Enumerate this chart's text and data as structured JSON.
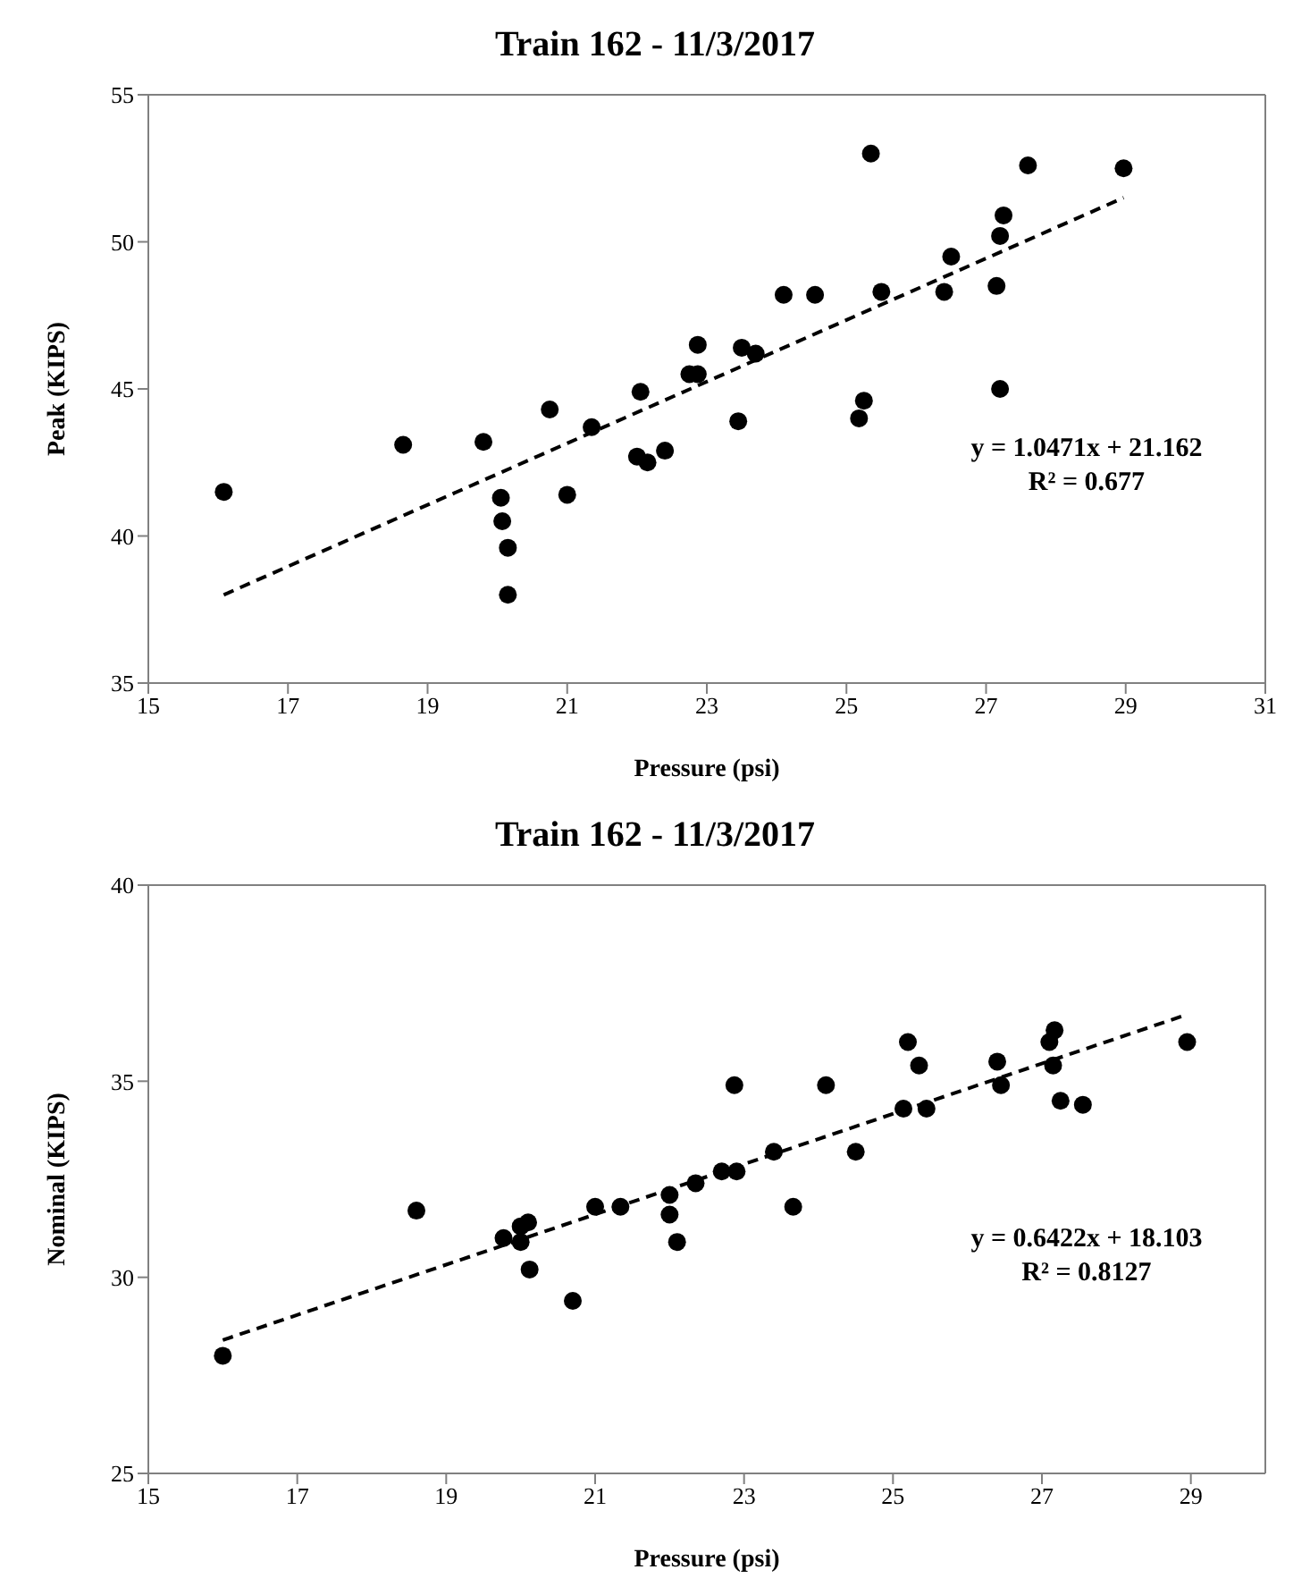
{
  "chart_data": [
    {
      "type": "scatter",
      "title": "Train 162 - 11/3/2017",
      "xlabel": "Pressure (psi)",
      "ylabel": "Peak (KIPS)",
      "xlim": [
        15,
        31
      ],
      "ylim": [
        35,
        55
      ],
      "xticks": [
        15,
        17,
        19,
        21,
        23,
        25,
        27,
        29,
        31
      ],
      "yticks": [
        35,
        40,
        45,
        50,
        55
      ],
      "marker": "circle",
      "annotations": [
        "y = 1.0471x + 21.162",
        "R² = 0.677"
      ],
      "series": [
        {
          "type": "scatter",
          "color": "#000000",
          "x": [
            16.08,
            18.65,
            19.8,
            20.05,
            20.07,
            20.15,
            20.15,
            20.75,
            21.0,
            21.35,
            22.05,
            22.0,
            22.15,
            22.4,
            22.75,
            22.87,
            22.87,
            23.45,
            23.5,
            23.7,
            24.1,
            24.55,
            25.35,
            25.5,
            25.25,
            25.18,
            26.4,
            26.5,
            27.15,
            27.2,
            27.25,
            27.2,
            27.6,
            28.97
          ],
          "values": [
            41.5,
            43.1,
            43.2,
            41.3,
            40.5,
            39.6,
            38.0,
            44.3,
            41.4,
            43.7,
            44.9,
            42.7,
            42.5,
            42.9,
            45.5,
            45.5,
            46.5,
            43.9,
            46.4,
            46.2,
            48.2,
            48.2,
            53.0,
            48.3,
            44.6,
            44.0,
            48.3,
            49.5,
            48.5,
            50.2,
            50.9,
            45.0,
            52.6,
            52.5
          ]
        },
        {
          "type": "line",
          "color": "#000000",
          "line_style": "dashed",
          "marker": "none",
          "x": [
            16.08,
            28.97
          ],
          "values": [
            38.0,
            51.5
          ]
        }
      ]
    },
    {
      "type": "scatter",
      "title": "Train 162 - 11/3/2017",
      "xlabel": "Pressure (psi)",
      "ylabel": "Nominal (KIPS)",
      "xlim": [
        15,
        30
      ],
      "ylim": [
        25,
        40
      ],
      "xticks": [
        15,
        17,
        19,
        21,
        23,
        25,
        27,
        29
      ],
      "yticks": [
        25,
        30,
        35,
        40
      ],
      "marker": "circle",
      "annotations": [
        "y = 0.6422x + 18.103",
        "R² = 0.8127"
      ],
      "series": [
        {
          "type": "scatter",
          "color": "#000000",
          "x": [
            16.0,
            18.6,
            19.77,
            20.0,
            20.1,
            20.0,
            20.12,
            20.7,
            21.0,
            21.34,
            22.0,
            22.0,
            22.1,
            22.35,
            22.7,
            22.87,
            22.9,
            23.4,
            23.66,
            24.1,
            24.5,
            25.14,
            25.45,
            25.2,
            25.35,
            26.4,
            26.45,
            27.1,
            27.17,
            27.15,
            27.25,
            27.55,
            28.95
          ],
          "values": [
            28.0,
            31.7,
            31.0,
            31.3,
            31.4,
            30.9,
            30.2,
            29.4,
            31.8,
            31.8,
            32.1,
            31.6,
            30.9,
            32.4,
            32.7,
            34.9,
            32.7,
            33.2,
            31.8,
            34.9,
            33.2,
            34.3,
            34.3,
            36.0,
            35.4,
            35.5,
            34.9,
            36.0,
            36.3,
            35.4,
            34.5,
            34.4,
            36.0
          ]
        },
        {
          "type": "line",
          "color": "#000000",
          "line_style": "dashed",
          "marker": "none",
          "x": [
            16.0,
            28.95
          ],
          "values": [
            28.4,
            36.7
          ]
        }
      ]
    }
  ]
}
